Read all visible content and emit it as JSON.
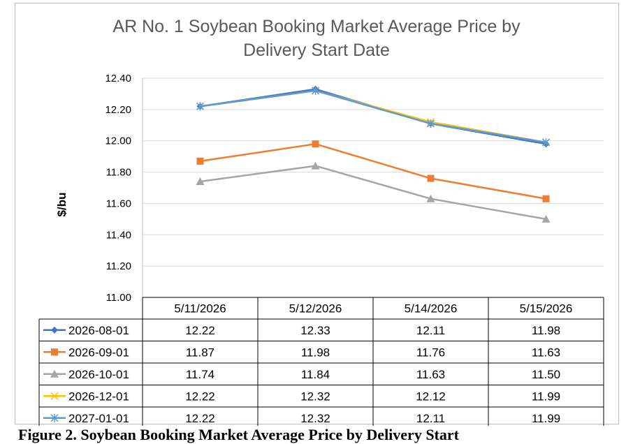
{
  "caption": "Figure 2. Soybean Booking Market Average Price by Delivery Start",
  "chart_data": {
    "type": "line",
    "title_lines": [
      "AR No. 1 Soybean Booking Market Average Price by",
      "Delivery Start Date"
    ],
    "ylabel": "$/bu",
    "ylim": [
      11.0,
      12.4
    ],
    "yticks": [
      "11.00",
      "11.20",
      "11.40",
      "11.60",
      "11.80",
      "12.00",
      "12.20",
      "12.40"
    ],
    "grid": true,
    "legend": "data-table",
    "categories": [
      "5/11/2026",
      "5/12/2026",
      "5/14/2026",
      "5/15/2026"
    ],
    "series": [
      {
        "name": "2026-08-01",
        "color": "#4472c4",
        "marker": "diamond",
        "values": [
          12.22,
          12.33,
          12.11,
          11.98
        ],
        "labels": [
          "12.22",
          "12.33",
          "12.11",
          "11.98"
        ]
      },
      {
        "name": "2026-09-01",
        "color": "#ed7d31",
        "marker": "square",
        "values": [
          11.87,
          11.98,
          11.76,
          11.63
        ],
        "labels": [
          "11.87",
          "11.98",
          "11.76",
          "11.63"
        ]
      },
      {
        "name": "2026-10-01",
        "color": "#a5a5a5",
        "marker": "triangle",
        "values": [
          11.74,
          11.84,
          11.63,
          11.5
        ],
        "labels": [
          "11.74",
          "11.84",
          "11.63",
          "11.50"
        ]
      },
      {
        "name": "2026-12-01",
        "color": "#ffc000",
        "marker": "x",
        "values": [
          12.22,
          12.32,
          12.12,
          11.99
        ],
        "labels": [
          "12.22",
          "12.32",
          "12.12",
          "11.99"
        ]
      },
      {
        "name": "2027-01-01",
        "color": "#5b9bd5",
        "marker": "star",
        "values": [
          12.22,
          12.32,
          12.11,
          11.99
        ],
        "labels": [
          "12.22",
          "12.32",
          "12.11",
          "11.99"
        ]
      }
    ]
  }
}
